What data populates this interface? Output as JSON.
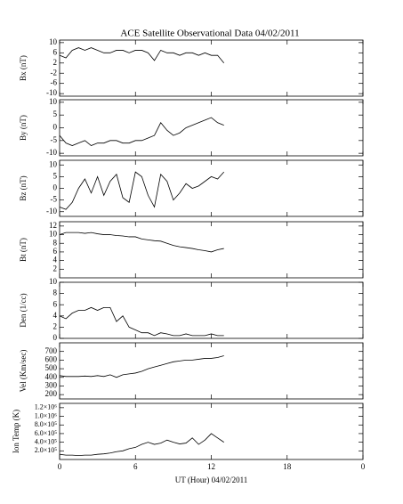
{
  "chart_data": [
    {
      "type": "line",
      "title": "ACE Satellite Observational Data   04/02/2011",
      "ylabel": "Bx (nT)",
      "color": "#000000",
      "x": [
        0,
        0.5,
        1,
        1.5,
        2,
        2.5,
        3,
        3.5,
        4,
        4.5,
        5,
        5.5,
        6,
        6.5,
        7,
        7.5,
        8,
        8.5,
        9,
        9.5,
        10,
        10.5,
        11,
        11.5,
        12,
        12.5,
        13
      ],
      "values": [
        5,
        4,
        7,
        8,
        7,
        8,
        7,
        6,
        6,
        7,
        7,
        6,
        7,
        7,
        6,
        3,
        7,
        6,
        6,
        5,
        6,
        6,
        5,
        6,
        5,
        5,
        2
      ],
      "xlim": [
        0,
        24
      ],
      "xticks": [
        0,
        6,
        12,
        18,
        24
      ],
      "ylim": [
        -11,
        11
      ],
      "yticks": [
        10,
        6,
        2,
        -2,
        -6,
        -10
      ]
    },
    {
      "type": "line",
      "ylabel": "By (nT)",
      "color": "#000000",
      "x": [
        0,
        0.5,
        1,
        1.5,
        2,
        2.5,
        3,
        3.5,
        4,
        4.5,
        5,
        5.5,
        6,
        6.5,
        7,
        7.5,
        8,
        8.5,
        9,
        9.5,
        10,
        10.5,
        11,
        11.5,
        12,
        12.5,
        13
      ],
      "values": [
        -3,
        -6,
        -7,
        -6,
        -5,
        -7,
        -6,
        -6,
        -5,
        -5,
        -6,
        -6,
        -5,
        -5,
        -4,
        -3,
        2,
        -1,
        -3,
        -2,
        0,
        1,
        2,
        3,
        4,
        2,
        1
      ],
      "xlim": [
        0,
        24
      ],
      "xticks": [
        0,
        6,
        12,
        18,
        24
      ],
      "ylim": [
        -11,
        11
      ],
      "yticks": [
        10,
        5,
        0,
        -5,
        -10
      ]
    },
    {
      "type": "line",
      "ylabel": "Bz (nT)",
      "color": "#000000",
      "x": [
        0,
        0.5,
        1,
        1.5,
        2,
        2.5,
        3,
        3.5,
        4,
        4.5,
        5,
        5.5,
        6,
        6.5,
        7,
        7.5,
        8,
        8.5,
        9,
        9.5,
        10,
        10.5,
        11,
        11.5,
        12,
        12.5,
        13
      ],
      "values": [
        -8,
        -9,
        -6,
        0,
        4,
        -2,
        5,
        -3,
        3,
        6,
        -4,
        -6,
        7,
        5,
        -3,
        -8,
        6,
        3,
        -5,
        -2,
        2,
        0,
        1,
        3,
        5,
        4,
        7
      ],
      "xlim": [
        0,
        24
      ],
      "xticks": [
        0,
        6,
        12,
        18,
        24
      ],
      "ylim": [
        -12,
        12
      ],
      "yticks": [
        10,
        5,
        0,
        -5,
        -10
      ]
    },
    {
      "type": "line",
      "ylabel": "Bt (nT)",
      "color": "#000000",
      "x": [
        0,
        0.5,
        1,
        1.5,
        2,
        2.5,
        3,
        3.5,
        4,
        4.5,
        5,
        5.5,
        6,
        6.5,
        7,
        7.5,
        8,
        8.5,
        9,
        9.5,
        10,
        10.5,
        11,
        11.5,
        12,
        12.5,
        13
      ],
      "values": [
        10,
        10.5,
        10.5,
        10.5,
        10.3,
        10.5,
        10.2,
        10,
        10,
        9.8,
        9.7,
        9.5,
        9.5,
        9,
        8.8,
        8.6,
        8.5,
        8,
        7.5,
        7.2,
        7,
        6.8,
        6.5,
        6.3,
        6,
        6.5,
        6.8
      ],
      "xlim": [
        0,
        24
      ],
      "xticks": [
        0,
        6,
        12,
        18,
        24
      ],
      "ylim": [
        0,
        13
      ],
      "yticks": [
        12,
        10,
        8,
        6,
        4,
        2
      ]
    },
    {
      "type": "line",
      "ylabel": "Den (1/cc)",
      "color": "#000000",
      "x": [
        0,
        0.5,
        1,
        1.5,
        2,
        2.5,
        3,
        3.5,
        4,
        4.5,
        5,
        5.5,
        6,
        6.5,
        7,
        7.5,
        8,
        8.5,
        9,
        9.5,
        10,
        10.5,
        11,
        11.5,
        12,
        12.5,
        13
      ],
      "values": [
        4,
        3.5,
        4.5,
        5,
        5,
        5.5,
        5,
        5.5,
        5.5,
        3,
        4,
        2,
        1.5,
        1,
        1,
        0.5,
        1,
        0.8,
        0.5,
        0.5,
        0.8,
        0.5,
        0.5,
        0.5,
        0.8,
        0.5,
        0.5
      ],
      "xlim": [
        0,
        24
      ],
      "xticks": [
        0,
        6,
        12,
        18,
        24
      ],
      "ylim": [
        0,
        10
      ],
      "yticks": [
        10,
        8,
        6,
        4,
        2,
        0
      ]
    },
    {
      "type": "line",
      "ylabel": "Vel (Km/sec)",
      "color": "#000000",
      "x": [
        0,
        0.5,
        1,
        1.5,
        2,
        2.5,
        3,
        3.5,
        4,
        4.5,
        5,
        5.5,
        6,
        6.5,
        7,
        7.5,
        8,
        8.5,
        9,
        9.5,
        10,
        10.5,
        11,
        11.5,
        12,
        12.5,
        13
      ],
      "values": [
        420,
        410,
        410,
        410,
        415,
        410,
        420,
        410,
        430,
        400,
        430,
        440,
        450,
        470,
        500,
        520,
        540,
        560,
        580,
        590,
        600,
        600,
        610,
        620,
        620,
        630,
        650
      ],
      "xlim": [
        0,
        24
      ],
      "xticks": [
        0,
        6,
        12,
        18,
        24
      ],
      "ylim": [
        150,
        800
      ],
      "yticks": [
        700,
        600,
        500,
        400,
        300,
        200
      ]
    },
    {
      "type": "line",
      "ylabel": "Ion Temp (K)",
      "xlabel": "UT (Hour)  04/02/2011",
      "color": "#000000",
      "x": [
        0,
        0.5,
        1,
        1.5,
        2,
        2.5,
        3,
        3.5,
        4,
        4.5,
        5,
        5.5,
        6,
        6.5,
        7,
        7.5,
        8,
        8.5,
        9,
        9.5,
        10,
        10.5,
        11,
        11.5,
        12,
        12.5,
        13
      ],
      "values": [
        120000,
        100000,
        100000,
        90000,
        100000,
        100000,
        120000,
        130000,
        150000,
        180000,
        200000,
        250000,
        280000,
        350000,
        400000,
        350000,
        380000,
        450000,
        400000,
        360000,
        380000,
        500000,
        350000,
        450000,
        600000,
        500000,
        400000
      ],
      "xlim": [
        0,
        24
      ],
      "xticks": [
        0,
        6,
        12,
        18,
        {
          "value": 24,
          "label": "0"
        }
      ],
      "ylim": [
        0,
        1300000
      ],
      "yticks": [
        {
          "value": 1200000,
          "label": "1.2×10⁶"
        },
        {
          "value": 1000000,
          "label": "1.0×10⁶"
        },
        {
          "value": 800000,
          "label": "8.0×10⁵"
        },
        {
          "value": 600000,
          "label": "6.0×10⁵"
        },
        {
          "value": 400000,
          "label": "4.0×10⁵"
        },
        {
          "value": 200000,
          "label": "2.0×10⁵"
        }
      ]
    }
  ]
}
